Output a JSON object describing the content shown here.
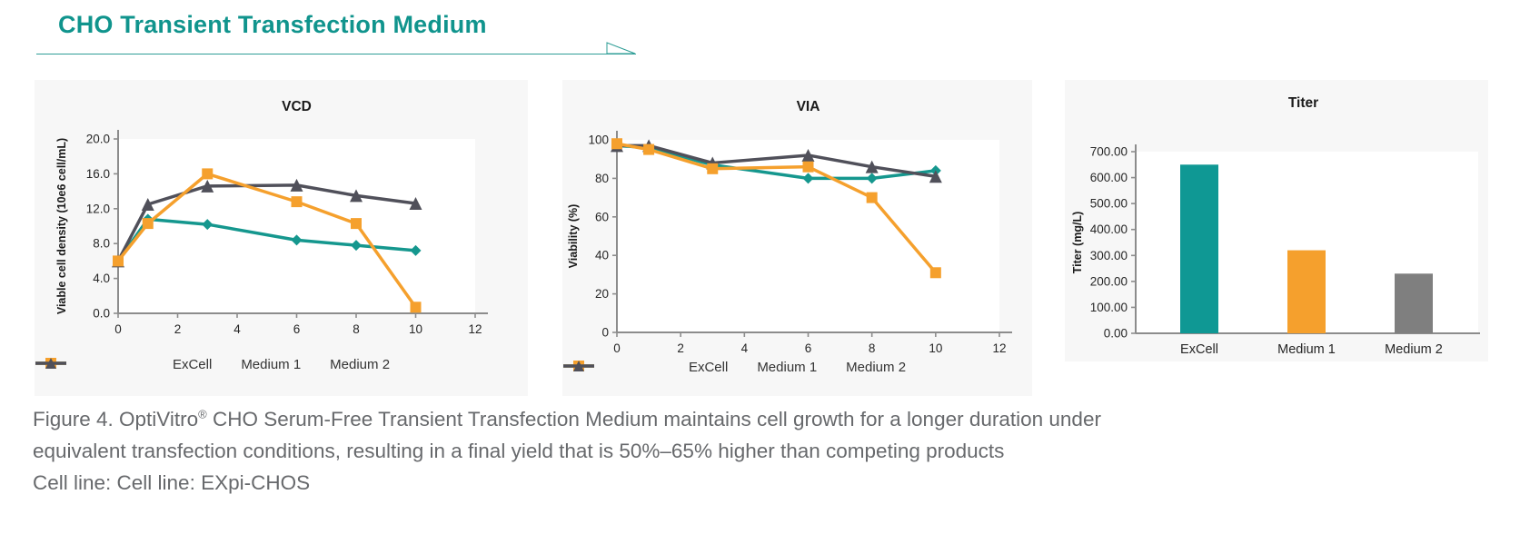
{
  "header": {
    "title": "CHO Transient Transfection Medium",
    "accent_color": "#10948D"
  },
  "caption": {
    "line1_pre": "Figure 4. OptiVitro",
    "line1_sup": "®",
    "line1_post": " CHO Serum-Free Transient Transfection Medium maintains cell growth for a longer duration under",
    "line2": "equivalent transfection conditions, resulting in a final yield that is 50%–65% higher than competing products",
    "line3": "Cell line: Cell line: EXpi-CHOS"
  },
  "colors": {
    "excell_teal": "#15978E",
    "medium1_orange": "#F5A02D",
    "medium2_slate": "#50505A",
    "medium2_bar_gray": "#7F7F7F",
    "axis_gray": "#8C8C8C",
    "panel_bg": "#F7F7F7"
  },
  "chart_data": [
    {
      "id": "vcd",
      "type": "line",
      "title": "VCD",
      "ylabel": "Viable cell density (10e6 cell/mL)",
      "xlim": [
        0,
        12
      ],
      "xticks": [
        0,
        2,
        4,
        6,
        8,
        10,
        12
      ],
      "ylim": [
        0,
        20
      ],
      "ytick_labels": [
        "0.0",
        "4.0",
        "8.0",
        "12.0",
        "16.0",
        "20.0"
      ],
      "x": [
        0,
        1,
        3,
        6,
        8,
        10
      ],
      "legend_position": "bottom",
      "grid": false,
      "series": [
        {
          "name": "ExCell",
          "marker": "diamond",
          "color": "#15978E",
          "values": [
            6.0,
            10.8,
            10.2,
            8.4,
            7.8,
            7.2
          ]
        },
        {
          "name": "Medium 1",
          "marker": "square",
          "color": "#F5A02D",
          "values": [
            6.0,
            10.3,
            16.0,
            12.8,
            10.3,
            0.7
          ]
        },
        {
          "name": "Medium 2",
          "marker": "triangle",
          "color": "#50505A",
          "values": [
            6.0,
            12.5,
            14.6,
            14.7,
            13.5,
            12.6
          ]
        }
      ]
    },
    {
      "id": "via",
      "type": "line",
      "title": "VIA",
      "ylabel": "Viability (%)",
      "xlim": [
        0,
        12
      ],
      "xticks": [
        0,
        2,
        4,
        6,
        8,
        10,
        12
      ],
      "ylim": [
        0,
        100
      ],
      "ytick_labels": [
        "0",
        "20",
        "40",
        "60",
        "80",
        "100"
      ],
      "x": [
        0,
        1,
        3,
        6,
        8,
        10
      ],
      "legend_position": "bottom",
      "grid": false,
      "series": [
        {
          "name": "ExCell",
          "marker": "diamond",
          "color": "#15978E",
          "values": [
            97,
            96,
            87,
            80,
            80,
            84
          ]
        },
        {
          "name": "Medium 1",
          "marker": "square",
          "color": "#F5A02D",
          "values": [
            98,
            95,
            85,
            86,
            70,
            31
          ]
        },
        {
          "name": "Medium 2",
          "marker": "triangle",
          "color": "#50505A",
          "values": [
            97,
            97,
            88,
            92,
            86,
            81
          ]
        }
      ]
    },
    {
      "id": "titer",
      "type": "bar",
      "title": "Titer",
      "ylabel": "Titer (mg/L)",
      "ylim": [
        0,
        700
      ],
      "ytick_labels": [
        "0.00",
        "100.00",
        "200.00",
        "300.00",
        "400.00",
        "500.00",
        "600.00",
        "700.00"
      ],
      "categories": [
        "ExCell",
        "Medium 1",
        "Medium 2"
      ],
      "values": [
        650,
        320,
        230
      ],
      "colors": [
        "#0F9894",
        "#F5A02D",
        "#7F7F7F"
      ],
      "grid": false
    }
  ]
}
